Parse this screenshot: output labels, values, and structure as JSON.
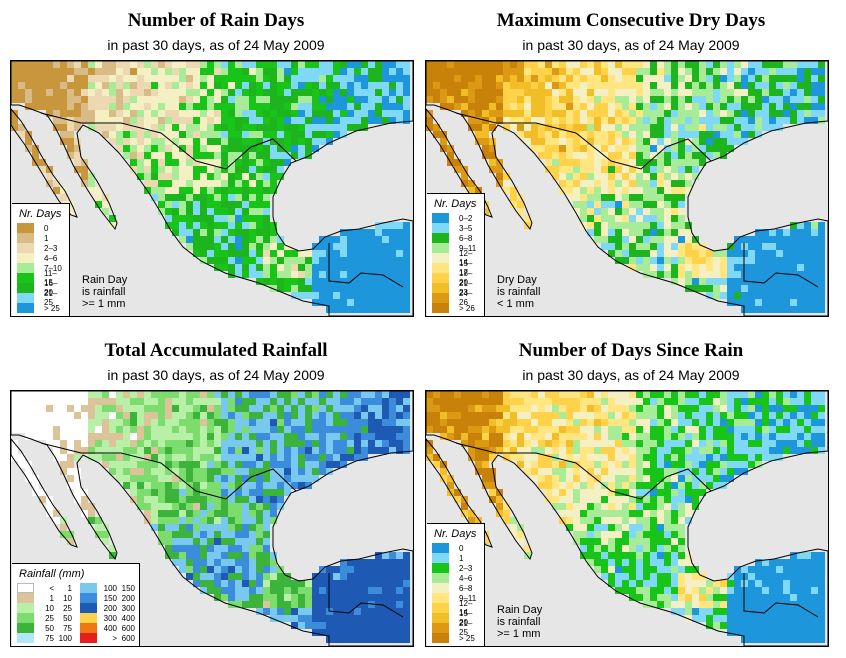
{
  "report_date": "24 May 2009",
  "panels": [
    {
      "title": "Number of Rain Days",
      "subtitle": "in past 30 days, as of  24 May 2009",
      "legend_title": "Nr. Days",
      "legend": [
        {
          "label": "0",
          "color": "#c8963c"
        },
        {
          "label": "1",
          "color": "#d8bb86"
        },
        {
          "label": "2–3",
          "color": "#ecd9b1"
        },
        {
          "label": "4–6",
          "color": "#f4f0c4"
        },
        {
          "label": "7–10",
          "color": "#a8ec98"
        },
        {
          "label": "11–15",
          "color": "#19c419"
        },
        {
          "label": "16–20",
          "color": "#1eb41e"
        },
        {
          "label": "21–25",
          "color": "#7fd8f5"
        },
        {
          "label": "> 25",
          "color": "#1e96dc"
        }
      ],
      "note": [
        "Rain Day",
        "is rainfall",
        ">= 1 mm"
      ]
    },
    {
      "title": "Maximum Consecutive Dry Days",
      "subtitle": "in past 30 days, as of  24 May 2009",
      "legend_title": "Nr. Days",
      "legend": [
        {
          "label": "0–2",
          "color": "#1e96dc"
        },
        {
          "label": "3–5",
          "color": "#7fd8f5"
        },
        {
          "label": "6–8",
          "color": "#1eb41e"
        },
        {
          "label": "9–11",
          "color": "#a8ec98"
        },
        {
          "label": "12–14",
          "color": "#f4f0c4"
        },
        {
          "label": "15–17",
          "color": "#ffe680"
        },
        {
          "label": "18–20",
          "color": "#ffd24a"
        },
        {
          "label": "21–23",
          "color": "#f2be28"
        },
        {
          "label": "24–26",
          "color": "#dc9a14"
        },
        {
          "label": "> 26",
          "color": "#c8820a"
        }
      ],
      "note": [
        "Dry Day",
        "is rainfall",
        "< 1 mm"
      ]
    },
    {
      "title": "Total Accumulated Rainfall",
      "subtitle": "in past 30 days, as of  24 May 2009",
      "legend_title": "Rainfall (mm)",
      "legend_left": [
        {
          "a": "<",
          "b": "1",
          "color": "#ffffff"
        },
        {
          "a": "1",
          "b": "10",
          "color": "#dcc39a"
        },
        {
          "a": "10",
          "b": "25",
          "color": "#b8f0a8"
        },
        {
          "a": "25",
          "b": "50",
          "color": "#7ddc6e"
        },
        {
          "a": "50",
          "b": "75",
          "color": "#3cb43c"
        },
        {
          "a": "75",
          "b": "100",
          "color": "#b4e6fa"
        }
      ],
      "legend_right": [
        {
          "a": "100",
          "b": "150",
          "color": "#78c8f0"
        },
        {
          "a": "150",
          "b": "200",
          "color": "#3c8cdc"
        },
        {
          "a": "200",
          "b": "300",
          "color": "#1e5ab4"
        },
        {
          "a": "300",
          "b": "400",
          "color": "#ffd24a"
        },
        {
          "a": "400",
          "b": "600",
          "color": "#f07814"
        },
        {
          "a": ">",
          "b": "600",
          "color": "#e61e1e"
        }
      ]
    },
    {
      "title": "Number of Days Since Rain",
      "subtitle": "in past 30 days, as of  24 May 2009",
      "legend_title": "Nr. Days",
      "legend": [
        {
          "label": "0",
          "color": "#1e96dc"
        },
        {
          "label": "1",
          "color": "#7fd8f5"
        },
        {
          "label": "2–3",
          "color": "#19c419"
        },
        {
          "label": "4–6",
          "color": "#a8ec98"
        },
        {
          "label": "6–8",
          "color": "#f4f0c4"
        },
        {
          "label": "9–11",
          "color": "#ffe680"
        },
        {
          "label": "12–14",
          "color": "#ffd24a"
        },
        {
          "label": "15–20",
          "color": "#f2be28"
        },
        {
          "label": "21–25",
          "color": "#dc9a14"
        },
        {
          "label": "> 25",
          "color": "#c8820a"
        }
      ],
      "note": [
        "Rain Day",
        "is rainfall",
        ">= 1 mm"
      ]
    }
  ],
  "map_colors": {
    "ocean": "#e6e6e6",
    "border": "#000000"
  }
}
